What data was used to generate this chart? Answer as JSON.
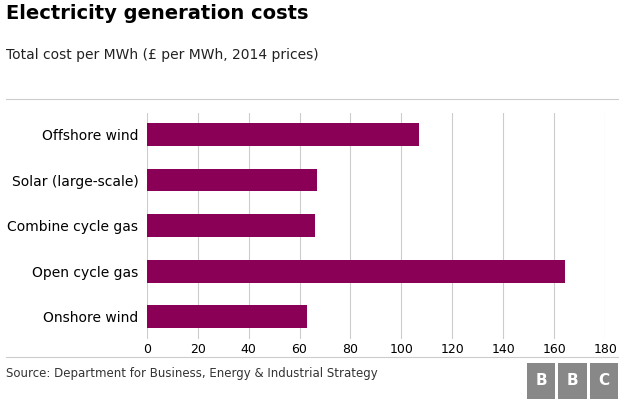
{
  "title": "Electricity generation costs",
  "subtitle": "Total cost per MWh (£ per MWh, 2014 prices)",
  "categories": [
    "Offshore wind",
    "Solar (large-scale)",
    "Combine cycle gas",
    "Open cycle gas",
    "Onshore wind"
  ],
  "values": [
    107,
    67,
    66,
    164,
    63
  ],
  "bar_color": "#8B0057",
  "xlim": [
    0,
    180
  ],
  "xticks": [
    0,
    20,
    40,
    60,
    80,
    100,
    120,
    140,
    160,
    180
  ],
  "source_text": "Source: Department for Business, Energy & Industrial Strategy",
  "background_color": "#ffffff",
  "grid_color": "#cccccc",
  "title_fontsize": 14,
  "subtitle_fontsize": 10,
  "tick_fontsize": 9,
  "label_fontsize": 10,
  "source_fontsize": 8.5,
  "bar_height": 0.5,
  "bbc_box_color": "#888888",
  "bbc_text_color": "#ffffff"
}
